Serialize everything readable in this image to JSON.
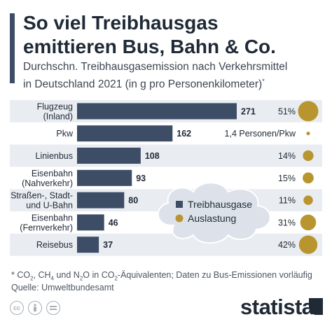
{
  "header": {
    "title_line1": "So viel Treibhausgas",
    "title_line2": "emittieren Bus, Bahn & Co.",
    "subtitle_line1": "Durchschn. Treibhausgasemission nach Verkehrsmittel",
    "subtitle_line2": "in Deutschland 2021 (in g pro Personenkilometer)",
    "subtitle_mark": "*"
  },
  "chart_data": {
    "type": "bar",
    "orientation": "horizontal",
    "categories": [
      [
        "Flugzeug",
        "(Inland)"
      ],
      [
        "Pkw"
      ],
      [
        "Linienbus"
      ],
      [
        "Eisenbahn",
        "(Nahverkehr)"
      ],
      [
        "Straßen-, Stadt-",
        "und U-Bahn"
      ],
      [
        "Eisenbahn",
        "(Fernverkehr)"
      ],
      [
        "Reisebus"
      ]
    ],
    "series": [
      {
        "name": "Treibhausgase",
        "values": [
          271,
          162,
          108,
          93,
          80,
          46,
          37
        ],
        "color": "#3e4d66"
      },
      {
        "name": "Auslastung",
        "values": [
          51,
          1.4,
          14,
          15,
          11,
          31,
          42
        ],
        "color": "#b8952f"
      }
    ],
    "value_labels": [
      "271",
      "162",
      "108",
      "93",
      "80",
      "46",
      "37"
    ],
    "auslastung_labels": [
      "51%",
      "1,4 Personen/Pkw",
      "14%",
      "15%",
      "11%",
      "31%",
      "42%"
    ],
    "xlim": [
      0,
      271
    ],
    "grid": false,
    "legend_position": "right (cloud shape)"
  },
  "footer": {
    "footnote_prefix": "* CO",
    "footnote_mid1": ", CH",
    "footnote_mid2": " und N",
    "footnote_mid3": "O in CO",
    "footnote_suffix": "-Äquivalenten; Daten zu Bus-Emissionen vorläufig",
    "sub_2": "2",
    "sub_4": "4",
    "source": "Quelle: Umweltbundesamt",
    "brand": "statista"
  },
  "colors": {
    "bar": "#3e4d66",
    "bubble": "#b8952f",
    "row_band": "#e9ecf1",
    "cloud": "#dde2ea"
  },
  "icons": [
    "creative-commons-icon",
    "attribution-icon",
    "no-derivatives-icon"
  ]
}
